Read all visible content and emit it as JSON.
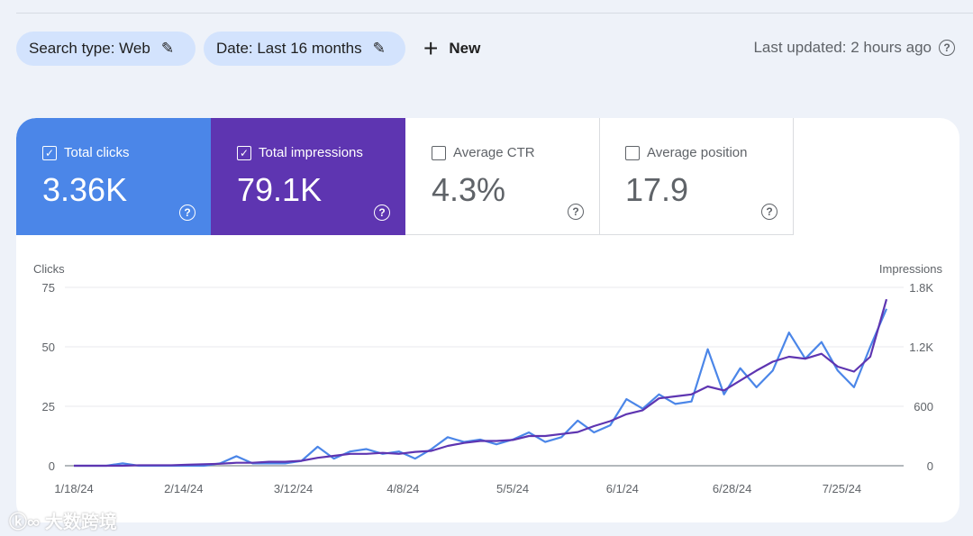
{
  "filters": [
    {
      "label": "Search type: Web",
      "icon": "pencil-icon"
    },
    {
      "label": "Date: Last 16 months",
      "icon": "pencil-icon"
    }
  ],
  "new_label": "New",
  "last_updated": "Last updated: 2 hours ago",
  "metrics": [
    {
      "label": "Total clicks",
      "value": "3.36K",
      "checked": true,
      "color": "#4b86e8"
    },
    {
      "label": "Total impressions",
      "value": "79.1K",
      "checked": true,
      "color": "#5e35b1"
    },
    {
      "label": "Average CTR",
      "value": "4.3%",
      "checked": false
    },
    {
      "label": "Average position",
      "value": "17.9",
      "checked": false
    }
  ],
  "watermark": "大数跨境",
  "chart_data": {
    "type": "line",
    "left_axis_label": "Clicks",
    "right_axis_label": "Impressions",
    "left_ticks": [
      "0",
      "25",
      "50",
      "75"
    ],
    "right_ticks": [
      "0",
      "600",
      "1.2K",
      "1.8K"
    ],
    "ylim_left": [
      0,
      75
    ],
    "ylim_right": [
      0,
      1800
    ],
    "x_ticks": [
      "1/18/24",
      "2/14/24",
      "3/12/24",
      "4/8/24",
      "5/5/24",
      "6/1/24",
      "6/28/24",
      "7/25/24"
    ],
    "grid": true,
    "dates": [
      "1/18",
      "1/22",
      "1/26",
      "1/30",
      "2/3",
      "2/7",
      "2/11",
      "2/15",
      "2/19",
      "2/23",
      "2/27",
      "3/2",
      "3/6",
      "3/10",
      "3/14",
      "3/18",
      "3/22",
      "3/26",
      "3/30",
      "4/3",
      "4/7",
      "4/11",
      "4/15",
      "4/19",
      "4/23",
      "4/27",
      "5/1",
      "5/5",
      "5/9",
      "5/13",
      "5/17",
      "5/21",
      "5/25",
      "5/29",
      "6/2",
      "6/6",
      "6/10",
      "6/14",
      "6/18",
      "6/22",
      "6/26",
      "6/30",
      "7/4",
      "7/8",
      "7/12",
      "7/16",
      "7/20",
      "7/24",
      "7/28",
      "8/1",
      "8/5"
    ],
    "series": [
      {
        "name": "Clicks",
        "axis": "left",
        "color": "#4b86e8",
        "values": [
          0,
          0,
          0,
          1,
          0,
          0,
          0,
          0,
          0,
          1,
          4,
          1,
          1,
          1,
          2,
          8,
          3,
          6,
          7,
          5,
          6,
          3,
          7,
          12,
          10,
          11,
          9,
          11,
          14,
          10,
          12,
          19,
          14,
          17,
          28,
          24,
          30,
          26,
          27,
          49,
          30,
          41,
          33,
          40,
          56,
          45,
          52,
          40,
          33,
          50,
          66
        ]
      },
      {
        "name": "Impressions",
        "axis": "right",
        "color": "#5e35b1",
        "values": [
          0,
          0,
          0,
          0,
          5,
          5,
          5,
          10,
          15,
          20,
          30,
          30,
          40,
          40,
          50,
          80,
          100,
          120,
          120,
          130,
          120,
          140,
          150,
          200,
          230,
          250,
          250,
          260,
          300,
          300,
          320,
          340,
          400,
          450,
          520,
          560,
          680,
          700,
          720,
          800,
          760,
          860,
          960,
          1050,
          1100,
          1080,
          1130,
          1000,
          950,
          1100,
          1680
        ]
      }
    ]
  }
}
